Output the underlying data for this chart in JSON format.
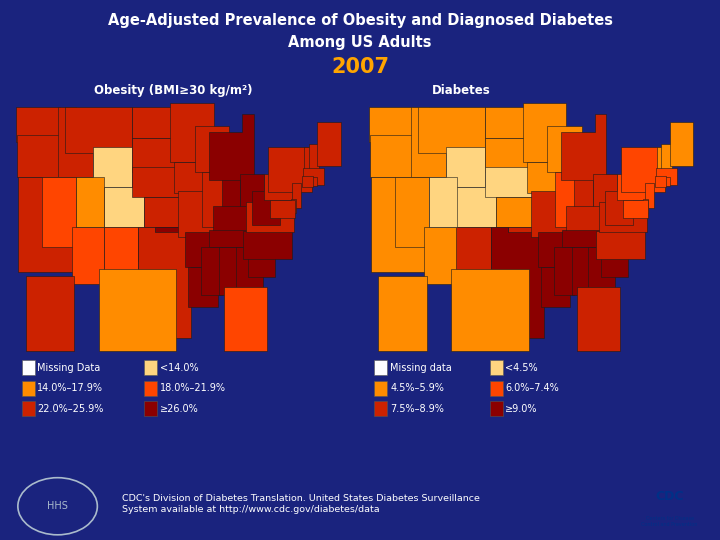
{
  "bg_color": "#1a237e",
  "title_line1": "Age-Adjusted Prevalence of Obesity and Diagnosed Diabetes",
  "title_line2": "Among US Adults",
  "year": "2007",
  "year_color": "#FFA500",
  "title_color": "#FFFFFF",
  "obesity_label": "Obesity (BMI≥30 kg/m²)",
  "diabetes_label": "Diabetes",
  "obesity_legend": [
    {
      "label": "Missing Data",
      "color": "#FFFFFF"
    },
    {
      "label": "14.0%–17.9%",
      "color": "#FF8C00"
    },
    {
      "label": "22.0%–25.9%",
      "color": "#CC2200"
    },
    {
      "label": "<14.0%",
      "color": "#FFD580"
    },
    {
      "label": "18.0%–21.9%",
      "color": "#FF4500"
    },
    {
      "label": "≥26.0%",
      "color": "#8B0000"
    }
  ],
  "diabetes_legend": [
    {
      "label": "Missing data",
      "color": "#FFFFFF"
    },
    {
      "label": "4.5%–5.9%",
      "color": "#FF8C00"
    },
    {
      "label": "7.5%–8.9%",
      "color": "#CC2200"
    },
    {
      "label": "<4.5%",
      "color": "#FFD580"
    },
    {
      "label": "6.0%–7.4%",
      "color": "#FF4500"
    },
    {
      "label": "≥9.0%",
      "color": "#8B0000"
    }
  ],
  "footer_text": "CDC's Division of Diabetes Translation. United States Diabetes Surveillance\nSystem available at http://www.cdc.gov/diabetes/data",
  "footer_color": "#FFFFFF",
  "map_obesity_colors": {
    "AL": "#8B0000",
    "AK": "#CC2200",
    "AZ": "#FF4500",
    "AR": "#8B0000",
    "CA": "#CC2200",
    "CO": "#FFD580",
    "CT": "#CC2200",
    "DE": "#CC2200",
    "FL": "#FF4500",
    "GA": "#8B0000",
    "HI": "#FF8C00",
    "ID": "#CC2200",
    "IL": "#CC2200",
    "IN": "#8B0000",
    "IA": "#CC2200",
    "KS": "#CC2200",
    "KY": "#8B0000",
    "LA": "#8B0000",
    "ME": "#CC2200",
    "MD": "#CC2200",
    "MA": "#CC2200",
    "MI": "#8B0000",
    "MN": "#CC2200",
    "MS": "#8B0000",
    "MO": "#CC2200",
    "MT": "#CC2200",
    "NE": "#CC2200",
    "NV": "#FF4500",
    "NH": "#CC2200",
    "NJ": "#CC2200",
    "NM": "#FF4500",
    "NY": "#CC2200",
    "NC": "#8B0000",
    "ND": "#CC2200",
    "OH": "#8B0000",
    "OK": "#8B0000",
    "OR": "#CC2200",
    "PA": "#CC2200",
    "RI": "#CC2200",
    "SC": "#8B0000",
    "SD": "#CC2200",
    "TN": "#8B0000",
    "TX": "#CC2200",
    "UT": "#FF8C00",
    "VT": "#CC2200",
    "VA": "#CC2200",
    "WA": "#CC2200",
    "WV": "#8B0000",
    "WI": "#CC2200",
    "WY": "#FFD580"
  },
  "map_diabetes_colors": {
    "AL": "#8B0000",
    "AK": "#FF8C00",
    "AZ": "#FF8C00",
    "AR": "#8B0000",
    "CA": "#FF8C00",
    "CO": "#FFD580",
    "CT": "#FF4500",
    "DE": "#FF4500",
    "FL": "#CC2200",
    "GA": "#8B0000",
    "HI": "#FF8C00",
    "ID": "#FF8C00",
    "IL": "#FF4500",
    "IN": "#CC2200",
    "IA": "#FF8C00",
    "KS": "#FF8C00",
    "KY": "#CC2200",
    "LA": "#8B0000",
    "ME": "#FF8C00",
    "MD": "#FF4500",
    "MA": "#FF4500",
    "MI": "#CC2200",
    "MN": "#FF8C00",
    "MS": "#8B0000",
    "MO": "#CC2200",
    "MT": "#FF8C00",
    "NE": "#FFD580",
    "NV": "#FF8C00",
    "NH": "#FF8C00",
    "NJ": "#FF4500",
    "NM": "#CC2200",
    "NY": "#FF4500",
    "NC": "#CC2200",
    "ND": "#FF8C00",
    "OH": "#CC2200",
    "OK": "#CC2200",
    "OR": "#FF8C00",
    "PA": "#FF4500",
    "RI": "#FF4500",
    "SC": "#8B0000",
    "SD": "#FF8C00",
    "TN": "#8B0000",
    "TX": "#8B0000",
    "UT": "#FFD580",
    "VT": "#FF8C00",
    "VA": "#CC2200",
    "WA": "#FF8C00",
    "WV": "#CC2200",
    "WI": "#FF8C00",
    "WY": "#FFD580"
  }
}
